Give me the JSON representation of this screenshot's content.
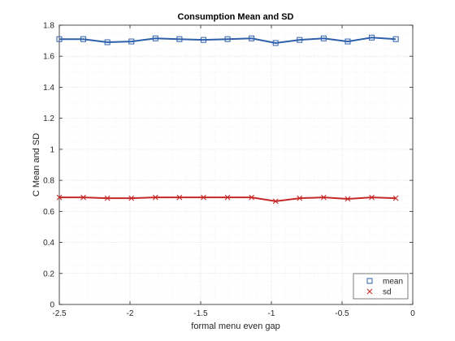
{
  "chart_data": {
    "type": "line",
    "title": "Consumption Mean and SD",
    "xlabel": "formal menu even gap",
    "ylabel": "C Mean and SD",
    "xlim": [
      -2.5,
      0
    ],
    "ylim": [
      0,
      1.8
    ],
    "x_ticks": [
      "-2.5",
      "-2",
      "-1.5",
      "-1",
      "-0.5",
      "0"
    ],
    "y_ticks": [
      "0",
      "0.2",
      "0.4",
      "0.6",
      "0.8",
      "1",
      "1.2",
      "1.4",
      "1.6",
      "1.8"
    ],
    "grid": true,
    "minor_grid": true,
    "legend_position": "bottom-right",
    "x": [
      -2.5,
      -2.33,
      -2.16,
      -1.99,
      -1.82,
      -1.65,
      -1.48,
      -1.31,
      -1.14,
      -0.97,
      -0.8,
      -0.63,
      -0.46,
      -0.29,
      -0.12
    ],
    "series": [
      {
        "name": "mean",
        "color": "#2d5fab",
        "marker": "square",
        "values": [
          1.71,
          1.71,
          1.69,
          1.695,
          1.715,
          1.71,
          1.705,
          1.71,
          1.715,
          1.685,
          1.705,
          1.715,
          1.695,
          1.72,
          1.71
        ]
      },
      {
        "name": "sd",
        "color": "#c62828",
        "marker": "x",
        "values": [
          0.69,
          0.69,
          0.685,
          0.685,
          0.69,
          0.69,
          0.69,
          0.69,
          0.69,
          0.665,
          0.685,
          0.69,
          0.68,
          0.69,
          0.685
        ]
      }
    ]
  }
}
